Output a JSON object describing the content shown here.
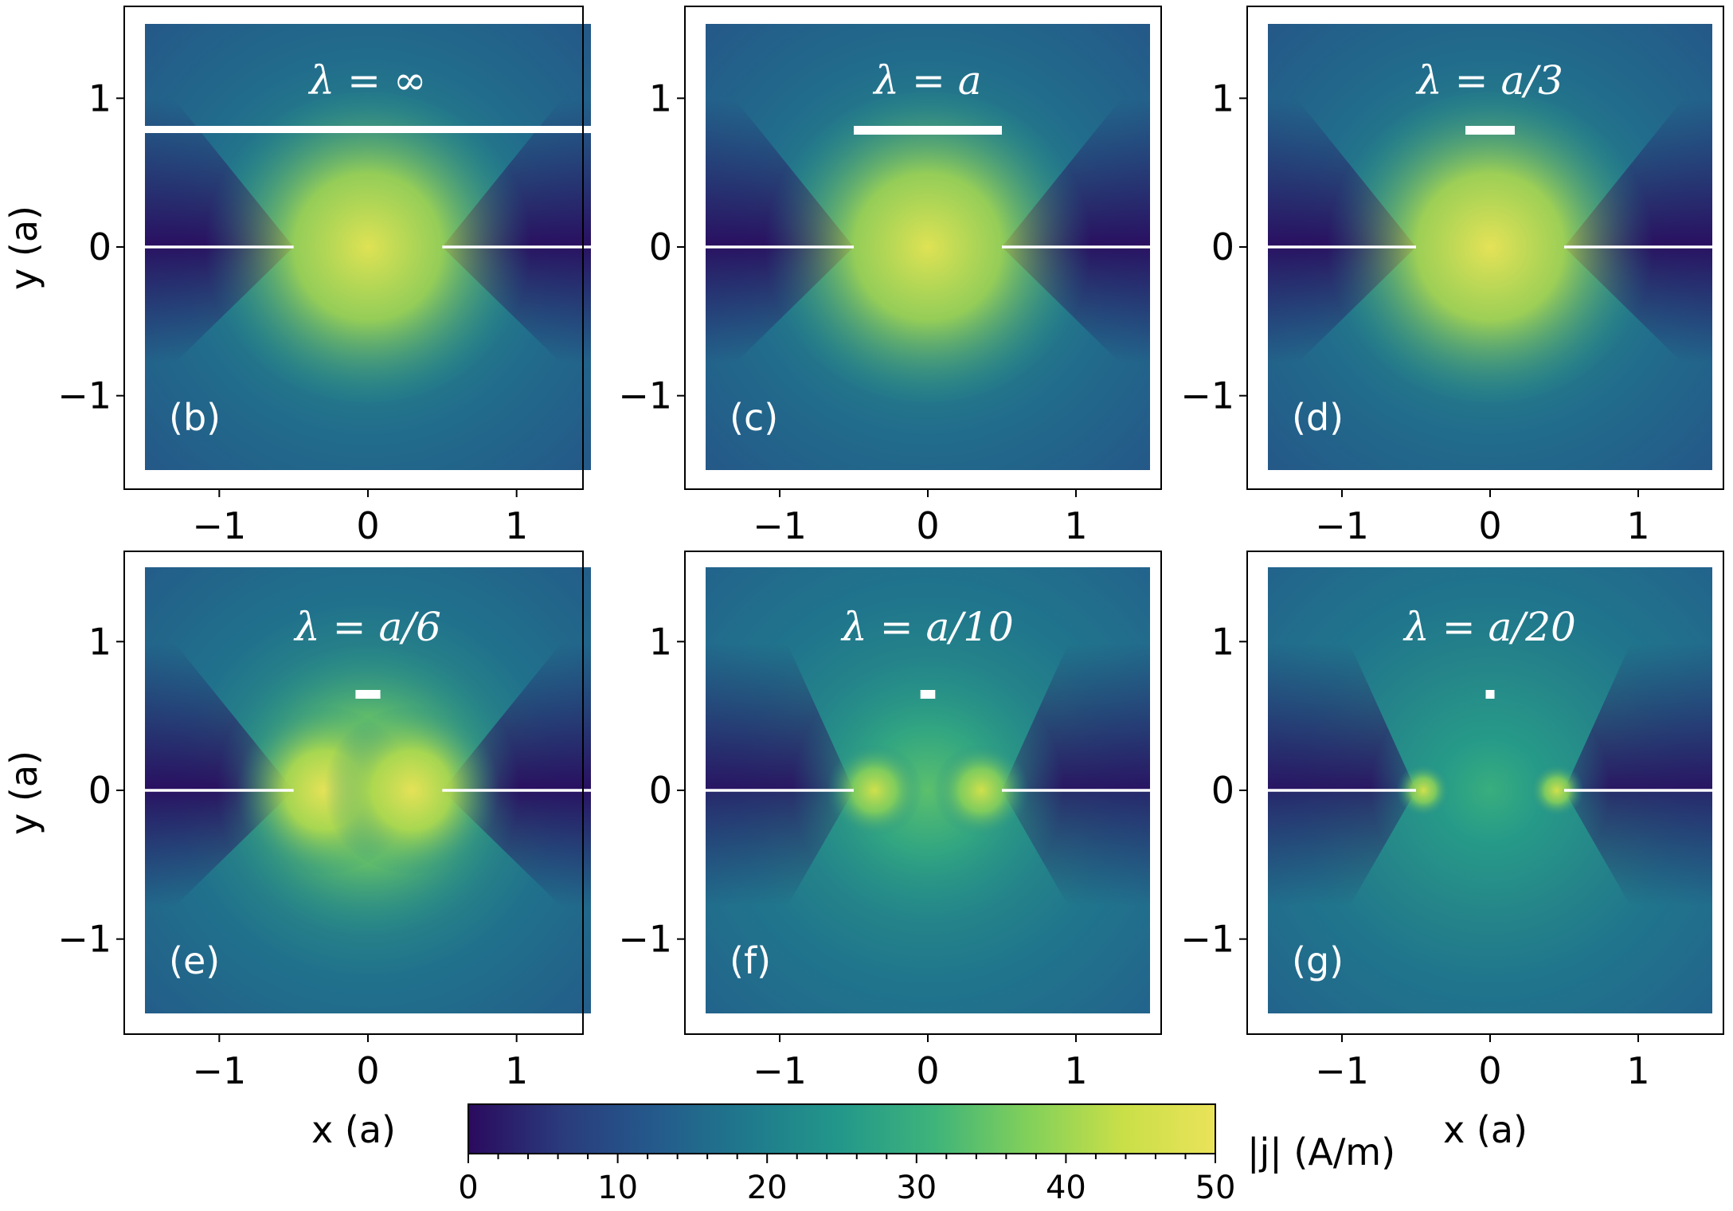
{
  "colors": {
    "viridis_stops": [
      "#2a0a5e",
      "#2a3b7c",
      "#245a8c",
      "#1f7a8c",
      "#23988a",
      "#3fb47a",
      "#82d05a",
      "#c9df48",
      "#eae35a"
    ],
    "stripe": "#ffffff",
    "frame": "#000000"
  },
  "chart_data": {
    "type": "heatmap",
    "colormap": "viridis",
    "xlabel": "x (a)",
    "ylabel": "y (a)",
    "xlim": [
      -1.5,
      1.5
    ],
    "ylim": [
      -1.5,
      1.5
    ],
    "xticks": [
      -1,
      0,
      1
    ],
    "yticks": [
      -1,
      0,
      1
    ],
    "xtick_labels": [
      "−1",
      "0",
      "1"
    ],
    "ytick_labels": [
      "−1",
      "0",
      "1"
    ],
    "colorbar": {
      "label": "|j| (A/m)",
      "range": [
        0,
        50
      ],
      "ticks": [
        0,
        10,
        20,
        30,
        40,
        50
      ],
      "tick_labels": [
        "0",
        "10",
        "20",
        "30",
        "40",
        "50"
      ]
    },
    "strip_edges": {
      "left": [
        -1.5,
        -0.5
      ],
      "right": [
        0.5,
        1.5
      ],
      "y": 0
    },
    "panels": [
      {
        "id": "b",
        "panel_label": "(b)",
        "lambda_label": "λ = ∞",
        "lambda_over_a": null,
        "scale_bar_width_a": 3.0,
        "max_current": 48,
        "variant": "single"
      },
      {
        "id": "c",
        "panel_label": "(c)",
        "lambda_label": "λ = a",
        "lambda_over_a": 1.0,
        "scale_bar_width_a": 1.0,
        "max_current": 48,
        "variant": "single"
      },
      {
        "id": "d",
        "panel_label": "(d)",
        "lambda_label": "λ = a/3",
        "lambda_over_a": 0.333,
        "scale_bar_width_a": 0.333,
        "max_current": 49,
        "variant": "single"
      },
      {
        "id": "e",
        "panel_label": "(e)",
        "lambda_label": "λ = a/6",
        "lambda_over_a": 0.167,
        "scale_bar_width_a": 0.167,
        "max_current": 49,
        "variant": "double"
      },
      {
        "id": "f",
        "panel_label": "(f)",
        "lambda_label": "λ = a/10",
        "lambda_over_a": 0.1,
        "scale_bar_width_a": 0.1,
        "max_current": 45,
        "variant": "edge"
      },
      {
        "id": "g",
        "panel_label": "(g)",
        "lambda_label": "λ = a/20",
        "lambda_over_a": 0.05,
        "scale_bar_width_a": 0.05,
        "max_current": 45,
        "variant": "edge-sharp"
      }
    ]
  }
}
